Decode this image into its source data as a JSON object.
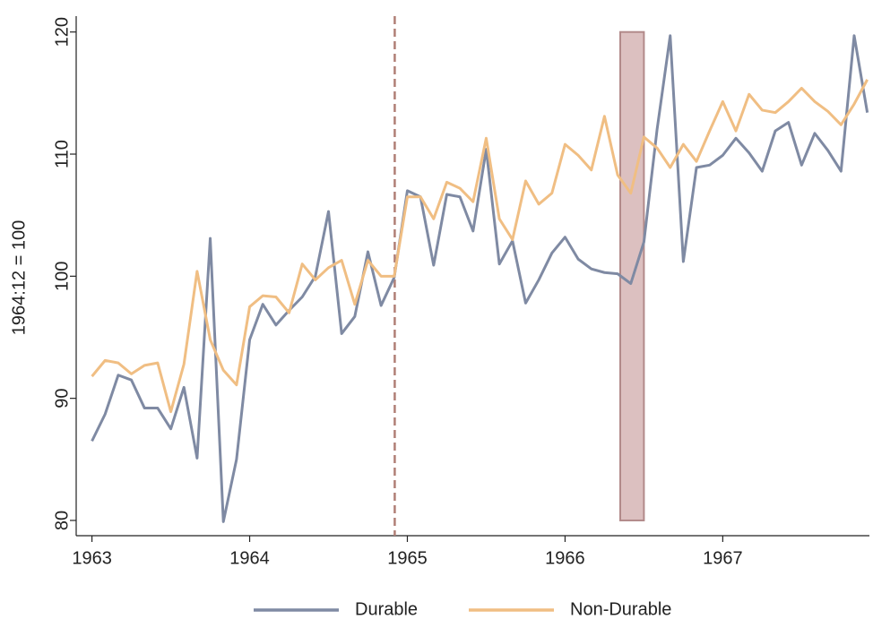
{
  "chart_data": {
    "type": "line",
    "y_label": "1964:12 = 100",
    "x": [
      1963.0,
      1963.0833,
      1963.1667,
      1963.25,
      1963.3333,
      1963.4167,
      1963.5,
      1963.5833,
      1963.6667,
      1963.75,
      1963.8333,
      1963.9167,
      1964.0,
      1964.0833,
      1964.1667,
      1964.25,
      1964.3333,
      1964.4167,
      1964.5,
      1964.5833,
      1964.6667,
      1964.75,
      1964.8333,
      1964.9167,
      1965.0,
      1965.0833,
      1965.1667,
      1965.25,
      1965.3333,
      1965.4167,
      1965.5,
      1965.5833,
      1965.6667,
      1965.75,
      1965.8333,
      1965.9167,
      1966.0,
      1966.0833,
      1966.1667,
      1966.25,
      1966.3333,
      1966.4167,
      1966.5,
      1966.5833,
      1966.6667,
      1966.75,
      1966.8333,
      1966.9167,
      1967.0,
      1967.0833,
      1967.1667,
      1967.25,
      1967.3333,
      1967.4167,
      1967.5,
      1967.5833,
      1967.6667,
      1967.75,
      1967.8333,
      1967.9167
    ],
    "series": [
      {
        "name": "Durable",
        "color": "#7f8aa3",
        "values": [
          86.5,
          88.7,
          91.9,
          91.5,
          89.2,
          89.2,
          87.5,
          90.9,
          85.1,
          103.1,
          79.9,
          85.0,
          94.8,
          97.7,
          96.0,
          97.2,
          98.3,
          100.0,
          105.3,
          95.3,
          96.7,
          102.0,
          97.6,
          99.9,
          107.0,
          106.5,
          100.9,
          106.7,
          106.5,
          103.7,
          110.4,
          101.0,
          102.9,
          97.8,
          99.7,
          101.9,
          103.2,
          101.4,
          100.6,
          100.3,
          100.2,
          99.4,
          102.8,
          112.0,
          119.7,
          101.2,
          108.9,
          109.1,
          109.9,
          111.3,
          110.1,
          108.6,
          111.9,
          112.6,
          109.1,
          111.7,
          110.3,
          108.6,
          119.7,
          113.4
        ]
      },
      {
        "name": "Non-Durable",
        "color": "#f0be83",
        "values": [
          91.8,
          93.1,
          92.9,
          92.0,
          92.7,
          92.9,
          88.9,
          92.8,
          100.4,
          94.8,
          92.3,
          91.1,
          97.5,
          98.4,
          98.3,
          97.0,
          101.0,
          99.7,
          100.7,
          101.3,
          97.7,
          101.3,
          100.0,
          100.0,
          106.5,
          106.5,
          104.7,
          107.7,
          107.2,
          106.1,
          111.3,
          104.7,
          103.0,
          107.8,
          105.9,
          106.8,
          110.8,
          109.9,
          108.7,
          113.1,
          108.3,
          106.8,
          111.4,
          110.5,
          108.9,
          110.8,
          109.4,
          111.9,
          114.3,
          111.9,
          114.9,
          113.6,
          113.4,
          114.3,
          115.4,
          114.3,
          113.5,
          112.4,
          114.1,
          116.1
        ]
      }
    ],
    "xlim": [
      1962.9,
      1967.93
    ],
    "xticks": [
      1963,
      1964,
      1965,
      1966,
      1967
    ],
    "ylim": [
      78.75,
      121.3
    ],
    "yticks": [
      80,
      90,
      100,
      110,
      120
    ],
    "vline": {
      "x": 1964.92,
      "color": "#b07f76"
    },
    "shade": {
      "x": [
        1966.35,
        1966.5
      ],
      "y": [
        80,
        120
      ],
      "color": "#dcc0c0",
      "edge": "#b28a8a"
    },
    "legend": "bottom"
  }
}
